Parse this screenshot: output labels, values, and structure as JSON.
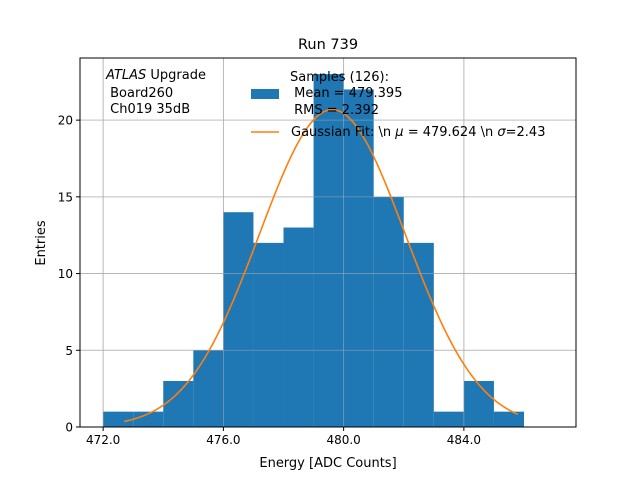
{
  "chart_data": {
    "type": "bar",
    "title": "Run 739",
    "xlabel": "Energy [ADC Counts]",
    "ylabel": "Entries",
    "xlim": [
      471.23,
      487.73
    ],
    "ylim": [
      0,
      24.05
    ],
    "grid": true,
    "bin_edges": [
      472,
      473,
      474,
      475,
      476,
      477,
      478,
      479,
      480,
      481,
      482,
      483,
      484,
      485,
      486
    ],
    "values": [
      1,
      1,
      3,
      5,
      14,
      12,
      13,
      23,
      22,
      15,
      12,
      1,
      3,
      1
    ],
    "xticks": [
      472,
      476,
      480,
      484
    ],
    "xtick_labels": [
      "472.0",
      "476.0",
      "480.0",
      "484.0"
    ],
    "yticks": [
      0,
      5,
      10,
      15,
      20
    ],
    "ytick_labels": [
      "0",
      "5",
      "10",
      "15",
      "20"
    ],
    "fit": {
      "mu": 479.624,
      "sigma": 2.43,
      "x_range": [
        472.7,
        485.8
      ],
      "n": 126
    },
    "colors": {
      "hist": "#1f77b4",
      "fit": "#ff7f0e",
      "grid": "#b0b0b0"
    },
    "annotation": {
      "italic": "ATLAS",
      "line1_rest": " Upgrade",
      "line2": " Board260",
      "line3": " Ch019 35dB"
    },
    "legend": {
      "placement": "top-right",
      "hist_lines": [
        "Samples (126):",
        " Mean = 479.395",
        " RMS = 2.392"
      ],
      "fit_label_parts": [
        "Gaussian Fit: \\n ",
        "μ",
        " = 479.624 \\n ",
        "σ",
        "=2.43"
      ]
    }
  }
}
